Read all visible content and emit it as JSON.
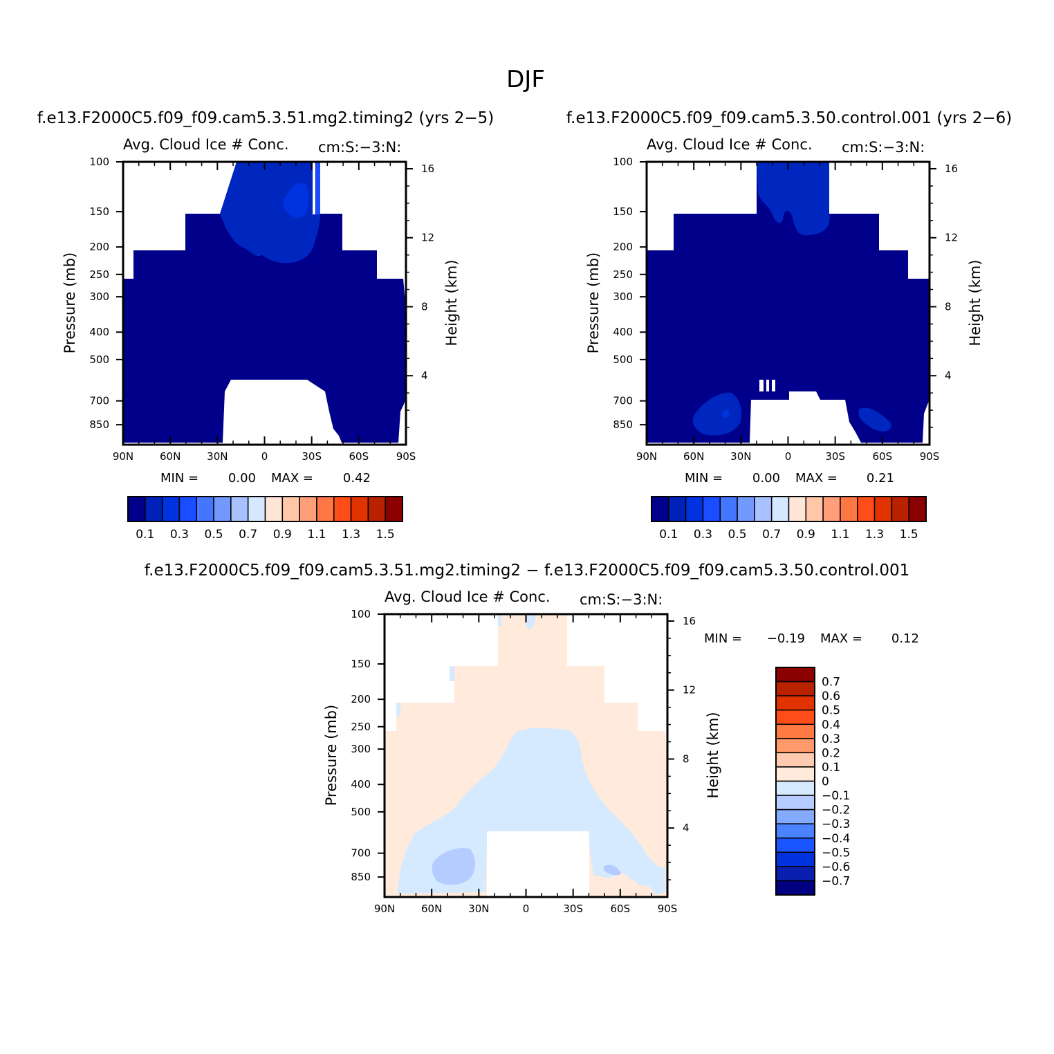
{
  "title": "DJF",
  "palettes": {
    "main": [
      "#00008b",
      "#0022b8",
      "#0033e0",
      "#1a4dff",
      "#4477ff",
      "#7399ff",
      "#a8c2ff",
      "#d6e8ff",
      "#ffe6d6",
      "#ffc7a8",
      "#ff9e78",
      "#ff7744",
      "#ff4d1a",
      "#e03300",
      "#b82200",
      "#8b0000"
    ],
    "diff": [
      "#000080",
      "#0a1fb0",
      "#0033dd",
      "#1a55ff",
      "#4a82ff",
      "#84aaff",
      "#b4ccff",
      "#d6eaff",
      "#ffeadb",
      "#ffcbb0",
      "#ff9a6a",
      "#ff7a42",
      "#ff4d1a",
      "#e03300",
      "#b82200",
      "#8b0000"
    ]
  },
  "chart_data": [
    {
      "id": "test",
      "type": "heatmap",
      "case_title": "f.e13.F2000C5.f09_f09.cam5.3.51.mg2.timing2 (yrs 2-5)",
      "variable": "Avg. Cloud Ice # Conc.",
      "units": "cm:S:-3:N:",
      "xlabel": "",
      "ylabel": "Pressure (mb)",
      "y2label": "Height (km)",
      "x_ticks": [
        "90N",
        "60N",
        "30N",
        "0",
        "30S",
        "60S",
        "90S"
      ],
      "y_ticks": [
        100,
        150,
        200,
        250,
        300,
        400,
        500,
        700,
        850
      ],
      "y2_ticks": [
        16,
        12,
        8,
        4
      ],
      "min_label": "MIN =",
      "min": "0.00",
      "max_label": "MAX =",
      "max": "0.42",
      "colorbar_labels": [
        "0.1",
        "0.3",
        "0.5",
        "0.7",
        "0.9",
        "1.1",
        "1.3",
        "1.5"
      ],
      "dominant_level": "0.0-0.1",
      "secondary_level": "0.1-0.2 upper troposphere",
      "peak_level": "0.2-0.3 near equator ~150 mb"
    },
    {
      "id": "control",
      "type": "heatmap",
      "case_title": "f.e13.F2000C5.f09_f09.cam5.3.50.control.001 (yrs 2-6)",
      "variable": "Avg. Cloud Ice # Conc.",
      "units": "cm:S:-3:N:",
      "xlabel": "",
      "ylabel": "Pressure (mb)",
      "y2label": "Height (km)",
      "x_ticks": [
        "90N",
        "60N",
        "30N",
        "0",
        "30S",
        "60S",
        "90S"
      ],
      "y_ticks": [
        100,
        150,
        200,
        250,
        300,
        400,
        500,
        700,
        850
      ],
      "y2_ticks": [
        16,
        12,
        8,
        4
      ],
      "min_label": "MIN =",
      "min": "0.00",
      "max_label": "MAX =",
      "max": "0.21",
      "colorbar_labels": [
        "0.1",
        "0.3",
        "0.5",
        "0.7",
        "0.9",
        "1.1",
        "1.3",
        "1.5"
      ],
      "dominant_level": "0.0-0.1",
      "secondary_level": "0.1-0.2 lower troposphere mid-latitudes and tropical upper troposphere"
    },
    {
      "id": "difference",
      "type": "heatmap",
      "case_title": "f.e13.F2000C5.f09_f09.cam5.3.51.mg2.timing2 - f.e13.F2000C5.f09_f09.cam5.3.50.control.001",
      "variable": "Avg. Cloud Ice # Conc.",
      "units": "cm:S:-3:N:",
      "xlabel": "",
      "ylabel": "Pressure (mb)",
      "y2label": "Height (km)",
      "x_ticks": [
        "90N",
        "60N",
        "30N",
        "0",
        "30S",
        "60S",
        "90S"
      ],
      "y_ticks": [
        100,
        150,
        200,
        250,
        300,
        400,
        500,
        700,
        850
      ],
      "y2_ticks": [
        16,
        12,
        8,
        4
      ],
      "min_label": "MIN =",
      "min": "-0.19",
      "max_label": "MAX =",
      "max": "0.12",
      "colorbar_labels": [
        "0.7",
        "0.6",
        "0.5",
        "0.4",
        "0.3",
        "0.2",
        "0.1",
        "0",
        "-0.1",
        "-0.2",
        "-0.3",
        "-0.4",
        "-0.5",
        "-0.6",
        "-0.7"
      ],
      "positive_region": "0 to 0.1 upper troposphere and high latitudes",
      "negative_region": "-0.1 to 0 tropical mid/lower troposphere"
    }
  ]
}
